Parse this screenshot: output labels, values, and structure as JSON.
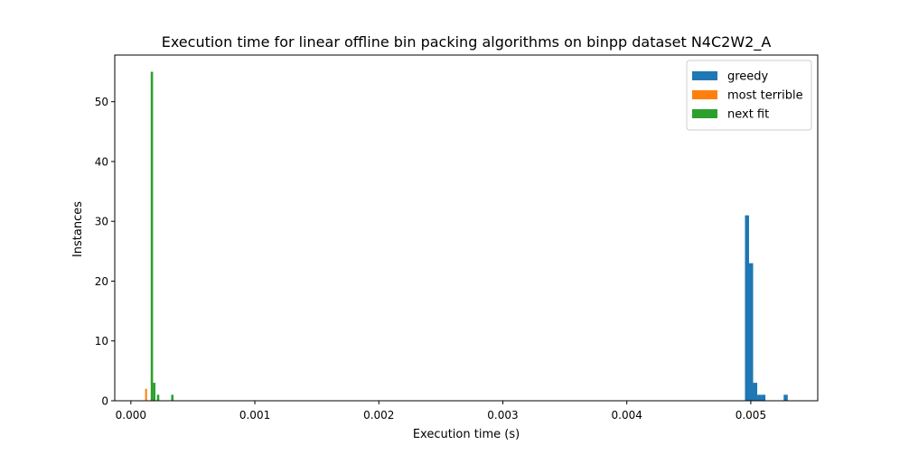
{
  "chart_data": {
    "type": "bar",
    "title": "Execution time for linear offline bin packing algorithms on binpp dataset N4C2W2_A",
    "xlabel": "Execution time (s)",
    "ylabel": "Instances",
    "xlim": [
      -0.00013,
      0.00554
    ],
    "ylim": [
      0,
      57.8
    ],
    "xticks": [
      {
        "value": 0.0,
        "label": "0.000"
      },
      {
        "value": 0.001,
        "label": "0.001"
      },
      {
        "value": 0.002,
        "label": "0.002"
      },
      {
        "value": 0.003,
        "label": "0.003"
      },
      {
        "value": 0.004,
        "label": "0.004"
      },
      {
        "value": 0.005,
        "label": "0.005"
      }
    ],
    "yticks": [
      {
        "value": 0,
        "label": "0"
      },
      {
        "value": 10,
        "label": "10"
      },
      {
        "value": 20,
        "label": "20"
      },
      {
        "value": 30,
        "label": "30"
      },
      {
        "value": 40,
        "label": "40"
      },
      {
        "value": 50,
        "label": "50"
      }
    ],
    "grid": false,
    "legend_position": "top-right",
    "series": [
      {
        "name": "greedy",
        "color": "#1f77b4",
        "bins": [
          {
            "x0": 0.004953,
            "x1": 0.004986,
            "count": 31
          },
          {
            "x0": 0.004986,
            "x1": 0.005019,
            "count": 23
          },
          {
            "x0": 0.005019,
            "x1": 0.005052,
            "count": 3
          },
          {
            "x0": 0.005052,
            "x1": 0.005085,
            "count": 1
          },
          {
            "x0": 0.005085,
            "x1": 0.005118,
            "count": 1
          },
          {
            "x0": 0.005265,
            "x1": 0.005298,
            "count": 1
          }
        ]
      },
      {
        "name": "most terrible",
        "color": "#ff7f0e",
        "bins": [
          {
            "x0": 0.000115,
            "x1": 0.00013,
            "count": 2
          }
        ]
      },
      {
        "name": "next fit",
        "color": "#2ca02c",
        "bins": [
          {
            "x0": 0.00016,
            "x1": 0.000179,
            "count": 55
          },
          {
            "x0": 0.000179,
            "x1": 0.000198,
            "count": 3
          },
          {
            "x0": 0.00021,
            "x1": 0.000229,
            "count": 1
          },
          {
            "x0": 0.000325,
            "x1": 0.000344,
            "count": 1
          }
        ]
      }
    ]
  }
}
